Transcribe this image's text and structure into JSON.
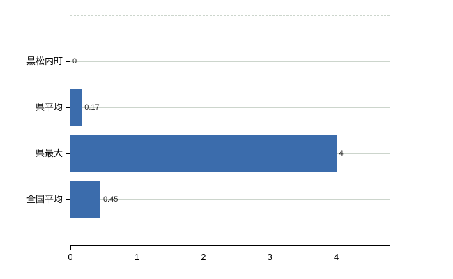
{
  "chart_data": {
    "type": "bar",
    "orientation": "horizontal",
    "title": "",
    "categories": [
      "黒松内町",
      "県平均",
      "県最大",
      "全国平均"
    ],
    "values": [
      0,
      0.17,
      4,
      0.45
    ],
    "value_labels": [
      "0",
      "0.17",
      "4",
      "0.45"
    ],
    "xlabel": "",
    "ylabel": "",
    "xlim": [
      0,
      4.8
    ],
    "xticks": [
      0,
      1,
      2,
      3,
      4
    ],
    "xtick_labels": [
      "0",
      "1",
      "2",
      "3",
      "4"
    ],
    "grid": true,
    "legend": false,
    "gridline_style": {
      "vertical": "dashed",
      "horizontal": "solid",
      "top_border": "dashed"
    },
    "colors": {
      "bar": "#3b6cac",
      "grid": "#ccd5cc",
      "axis": "#000000",
      "value_label": "#222222",
      "category_label": "#000000",
      "background": "#ffffff"
    }
  }
}
